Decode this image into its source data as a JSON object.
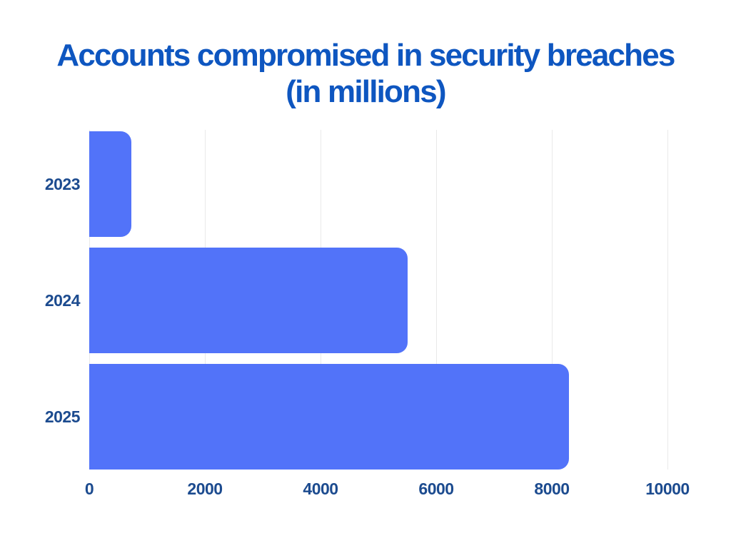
{
  "page": {
    "background_color": "#ffffff"
  },
  "title": {
    "line1": "Accounts compromised in security breaches",
    "line2": "(in millions)",
    "color": "#0e56c0"
  },
  "chart_data": {
    "type": "bar",
    "orientation": "horizontal",
    "title": "Accounts compromised in security breaches (in millions)",
    "categories": [
      "2023",
      "2024",
      "2025"
    ],
    "values": [
      730,
      5500,
      8300
    ],
    "xlabel": "",
    "ylabel": "",
    "xlim": [
      0,
      10000
    ],
    "x_ticks": [
      0,
      2000,
      4000,
      6000,
      8000,
      10000
    ],
    "grid": "vertical-only",
    "legend": "none",
    "bar_color": "#5273f9",
    "tick_label_color": "#1c4b8f",
    "gridline_color": "#e9e9e9",
    "bar_corner_style": "rounded-right"
  }
}
